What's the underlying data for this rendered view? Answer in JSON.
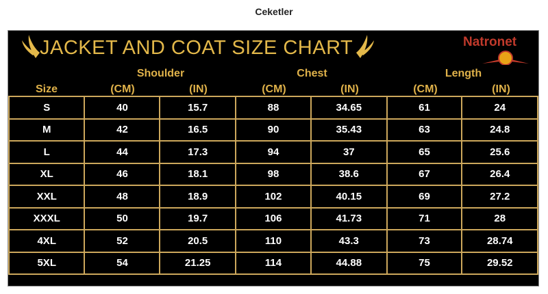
{
  "page": {
    "title": "Ceketler"
  },
  "chart": {
    "title": "JACKET AND COAT SIZE CHART",
    "logo": "Natronet",
    "groups": [
      "Shoulder",
      "Chest",
      "Length"
    ],
    "columns": [
      "Size",
      "(CM)",
      "(IN)",
      "(CM)",
      "(IN)",
      "(CM)",
      "(IN)"
    ],
    "rows": [
      [
        "S",
        "40",
        "15.7",
        "88",
        "34.65",
        "61",
        "24"
      ],
      [
        "M",
        "42",
        "16.5",
        "90",
        "35.43",
        "63",
        "24.8"
      ],
      [
        "L",
        "44",
        "17.3",
        "94",
        "37",
        "65",
        "25.6"
      ],
      [
        "XL",
        "46",
        "18.1",
        "98",
        "38.6",
        "67",
        "26.4"
      ],
      [
        "XXL",
        "48",
        "18.9",
        "102",
        "40.15",
        "69",
        "27.2"
      ],
      [
        "XXXL",
        "50",
        "19.7",
        "106",
        "41.73",
        "71",
        "28"
      ],
      [
        "4XL",
        "52",
        "20.5",
        "110",
        "43.3",
        "73",
        "28.74"
      ],
      [
        "5XL",
        "54",
        "21.25",
        "114",
        "44.88",
        "75",
        "29.52"
      ]
    ]
  }
}
